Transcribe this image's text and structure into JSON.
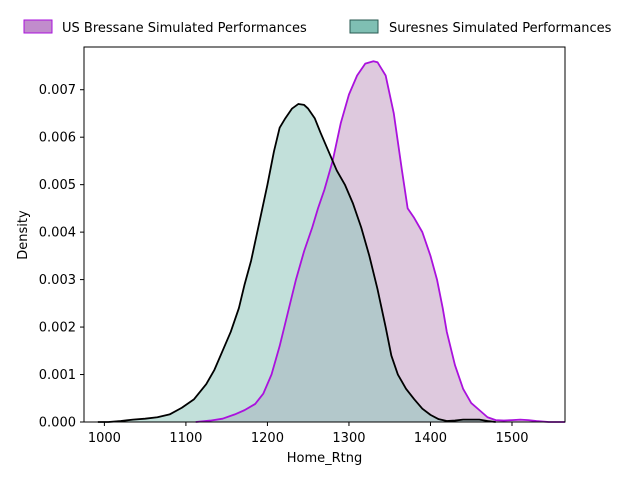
{
  "chart_data": {
    "type": "area",
    "xlabel": "Home_Rtng",
    "ylabel": "Density",
    "xlim": [
      975,
      1565
    ],
    "ylim": [
      0,
      0.0079
    ],
    "x_ticks": [
      1000,
      1100,
      1200,
      1300,
      1400,
      1500
    ],
    "y_ticks": [
      0.0,
      0.001,
      0.002,
      0.003,
      0.004,
      0.005,
      0.006,
      0.007
    ],
    "y_tick_labels": [
      "0.000",
      "0.001",
      "0.002",
      "0.003",
      "0.004",
      "0.005",
      "0.006",
      "0.007"
    ],
    "grid": false,
    "legend_position": "top",
    "series": [
      {
        "name": "US Bressane Simulated Performances",
        "line_color": "#aa11dd",
        "fill_color": "#d8bfd8",
        "fill_opacity": 0.85,
        "legend_fill": "#c18ccc",
        "legend_edge": "#aa11dd",
        "points": [
          [
            1112,
            0.0
          ],
          [
            1130,
            3e-05
          ],
          [
            1145,
            7e-05
          ],
          [
            1160,
            0.00016
          ],
          [
            1172,
            0.00025
          ],
          [
            1185,
            0.00038
          ],
          [
            1195,
            0.0006
          ],
          [
            1205,
            0.001
          ],
          [
            1215,
            0.0016
          ],
          [
            1225,
            0.0023
          ],
          [
            1235,
            0.003
          ],
          [
            1245,
            0.0036
          ],
          [
            1255,
            0.0041
          ],
          [
            1262,
            0.0045
          ],
          [
            1270,
            0.0049
          ],
          [
            1280,
            0.0055
          ],
          [
            1290,
            0.0063
          ],
          [
            1300,
            0.0069
          ],
          [
            1310,
            0.0073
          ],
          [
            1320,
            0.00755
          ],
          [
            1330,
            0.0076
          ],
          [
            1335,
            0.00758
          ],
          [
            1345,
            0.0073
          ],
          [
            1355,
            0.0065
          ],
          [
            1365,
            0.0053
          ],
          [
            1372,
            0.0045
          ],
          [
            1380,
            0.0043
          ],
          [
            1390,
            0.004
          ],
          [
            1400,
            0.0035
          ],
          [
            1408,
            0.003
          ],
          [
            1415,
            0.0024
          ],
          [
            1420,
            0.0019
          ],
          [
            1430,
            0.0012
          ],
          [
            1440,
            0.0007
          ],
          [
            1450,
            0.0004
          ],
          [
            1460,
            0.00025
          ],
          [
            1470,
            0.0001
          ],
          [
            1480,
            4e-05
          ],
          [
            1490,
            3e-05
          ],
          [
            1500,
            4e-05
          ],
          [
            1510,
            5e-05
          ],
          [
            1520,
            4e-05
          ],
          [
            1530,
            2e-05
          ],
          [
            1545,
            0.0
          ],
          [
            1565,
            0.0
          ]
        ]
      },
      {
        "name": "Suresnes Simulated Performances",
        "line_color": "#000000",
        "fill_color": "#8fc6bb",
        "fill_opacity": 0.55,
        "legend_fill": "#7fbfb3",
        "legend_edge": "#2a5a52",
        "points": [
          [
            992,
            0.0
          ],
          [
            1005,
            0.0
          ],
          [
            1020,
            2e-05
          ],
          [
            1035,
            5e-05
          ],
          [
            1050,
            7e-05
          ],
          [
            1065,
            0.0001
          ],
          [
            1080,
            0.00016
          ],
          [
            1095,
            0.0003
          ],
          [
            1110,
            0.00048
          ],
          [
            1125,
            0.0008
          ],
          [
            1135,
            0.0011
          ],
          [
            1145,
            0.0015
          ],
          [
            1155,
            0.0019
          ],
          [
            1165,
            0.0024
          ],
          [
            1172,
            0.0029
          ],
          [
            1180,
            0.0034
          ],
          [
            1190,
            0.0042
          ],
          [
            1200,
            0.005
          ],
          [
            1208,
            0.0057
          ],
          [
            1215,
            0.0062
          ],
          [
            1222,
            0.0064
          ],
          [
            1230,
            0.0066
          ],
          [
            1238,
            0.0067
          ],
          [
            1245,
            0.00668
          ],
          [
            1250,
            0.0066
          ],
          [
            1258,
            0.0064
          ],
          [
            1265,
            0.0061
          ],
          [
            1275,
            0.0057
          ],
          [
            1285,
            0.0053
          ],
          [
            1295,
            0.005
          ],
          [
            1305,
            0.0046
          ],
          [
            1315,
            0.0041
          ],
          [
            1325,
            0.0035
          ],
          [
            1335,
            0.0028
          ],
          [
            1345,
            0.002
          ],
          [
            1352,
            0.0014
          ],
          [
            1360,
            0.001
          ],
          [
            1370,
            0.0007
          ],
          [
            1380,
            0.00048
          ],
          [
            1390,
            0.00028
          ],
          [
            1400,
            0.00015
          ],
          [
            1410,
            6e-05
          ],
          [
            1420,
            2e-05
          ],
          [
            1430,
            3e-05
          ],
          [
            1440,
            5e-05
          ],
          [
            1450,
            5e-05
          ],
          [
            1460,
            5e-05
          ],
          [
            1470,
            2e-05
          ],
          [
            1480,
            0.0
          ]
        ]
      }
    ]
  }
}
